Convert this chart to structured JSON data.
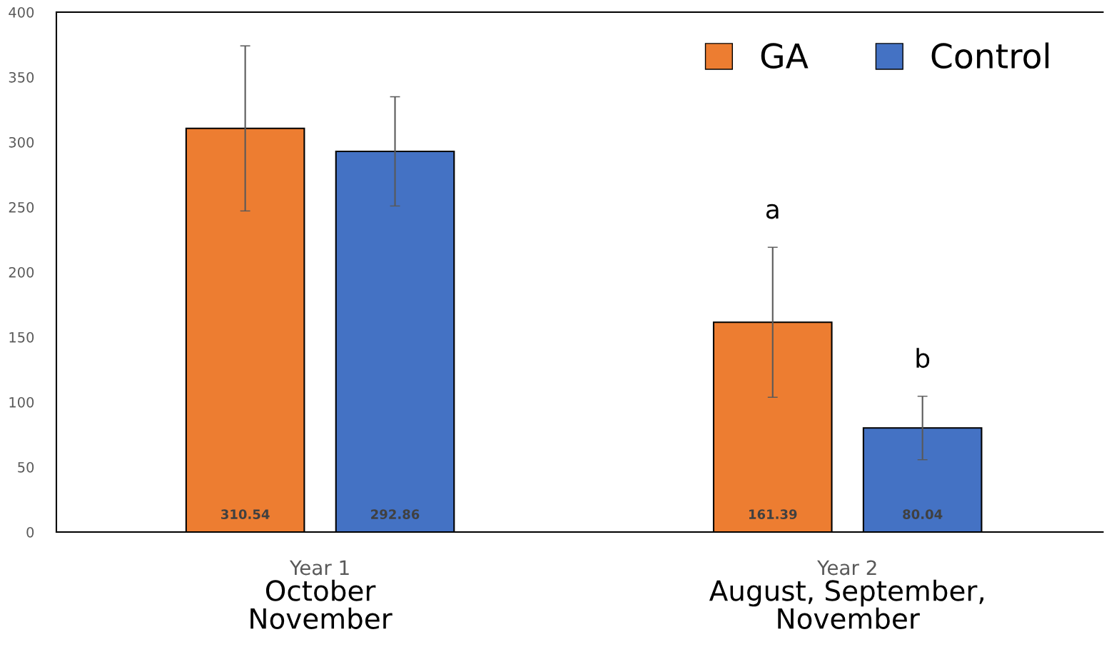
{
  "chart_data": {
    "type": "bar",
    "categories": [
      "Year 1\nOctober\nNovember",
      "Year 2\nAugust, September,\nNovember"
    ],
    "series": [
      {
        "name": "GA",
        "color": "#ed7d31",
        "values": [
          310.54,
          161.39
        ],
        "errors": [
          63.5,
          57.7
        ]
      },
      {
        "name": "Control",
        "color": "#4472c4",
        "values": [
          292.86,
          80.04
        ],
        "errors": [
          42,
          24.4
        ]
      }
    ],
    "ylim": [
      0,
      400
    ],
    "yticks": [
      0,
      50,
      100,
      150,
      200,
      250,
      300,
      350,
      400
    ],
    "data_labels": true,
    "grid": false,
    "legend": "top right",
    "annotations": [
      "a",
      "b"
    ]
  }
}
